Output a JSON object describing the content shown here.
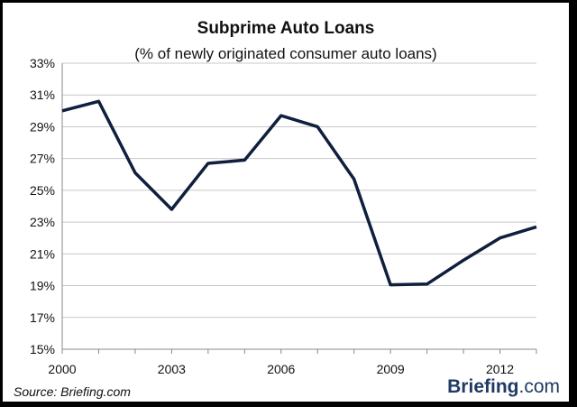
{
  "chart_data": {
    "type": "line",
    "title": "Subprime Auto Loans",
    "subtitle": "(% of newly originated consumer auto loans)",
    "x": [
      2000,
      2001,
      2002,
      2003,
      2004,
      2005,
      2006,
      2007,
      2008,
      2009,
      2010,
      2011,
      2012,
      2013
    ],
    "xticks": [
      2000,
      2003,
      2006,
      2009,
      2012
    ],
    "xticks_labels": [
      "2000",
      "2003",
      "2006",
      "2009",
      "2012"
    ],
    "xlim": [
      2000,
      2013
    ],
    "ylim": [
      15,
      33
    ],
    "yticks": [
      15,
      17,
      19,
      21,
      23,
      25,
      27,
      29,
      31,
      33
    ],
    "yticks_labels": [
      "15%",
      "17%",
      "19%",
      "21%",
      "23%",
      "25%",
      "27%",
      "29%",
      "31%",
      "33%"
    ],
    "series": [
      {
        "values": [
          30.0,
          30.6,
          26.1,
          23.8,
          26.7,
          26.9,
          29.7,
          29.0,
          25.7,
          19.05,
          19.1,
          20.6,
          22.0,
          22.7
        ]
      }
    ],
    "grid": "horizontal",
    "line_color": "#0f1f3d"
  },
  "footer": {
    "source": "Source: Briefing.com",
    "brand_bold": "Briefing",
    "brand_rest": ".com"
  }
}
